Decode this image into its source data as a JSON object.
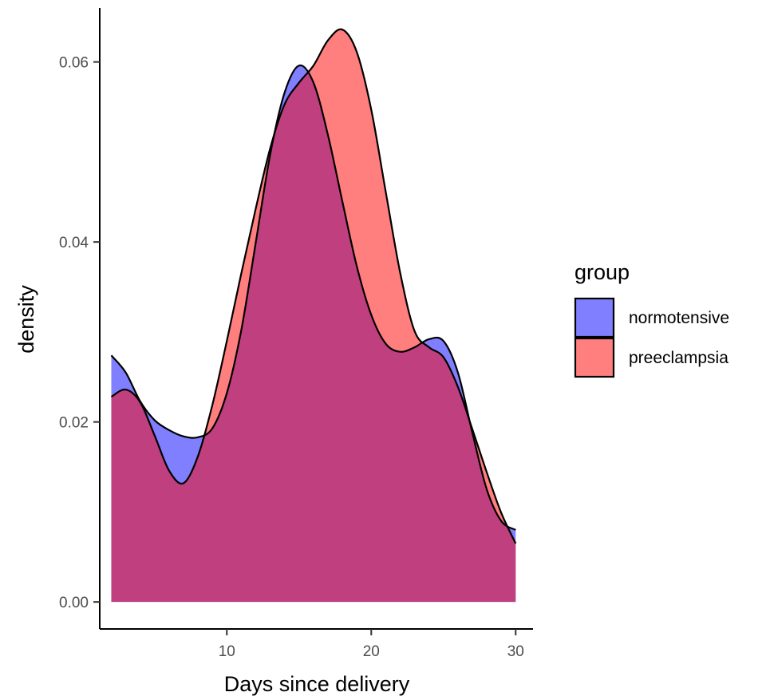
{
  "chart_data": {
    "type": "area",
    "xlabel": "Days since delivery",
    "ylabel": "density",
    "xlim": [
      1.2,
      31.2
    ],
    "ylim": [
      -0.003,
      0.066
    ],
    "x_ticks": [
      10,
      20,
      30
    ],
    "x_tick_labels": [
      "10",
      "20",
      "30"
    ],
    "y_ticks": [
      0,
      0.02,
      0.04,
      0.06
    ],
    "y_tick_labels": [
      "0.00",
      "0.02",
      "0.04",
      "0.06"
    ],
    "grid": false,
    "legend": {
      "title": "group",
      "position": "right"
    },
    "series": [
      {
        "name": "normotensive",
        "color": "#0000FF",
        "fill_opacity": 0.5,
        "points": [
          [
            2,
            0.0274
          ],
          [
            3,
            0.0255
          ],
          [
            4,
            0.0223
          ],
          [
            5,
            0.0202
          ],
          [
            6,
            0.0191
          ],
          [
            7,
            0.0184
          ],
          [
            8,
            0.0183
          ],
          [
            9,
            0.0193
          ],
          [
            10,
            0.0232
          ],
          [
            11,
            0.0302
          ],
          [
            12,
            0.0399
          ],
          [
            13,
            0.0497
          ],
          [
            14,
            0.0566
          ],
          [
            15,
            0.0596
          ],
          [
            16,
            0.0577
          ],
          [
            17,
            0.0519
          ],
          [
            18,
            0.0445
          ],
          [
            19,
            0.0373
          ],
          [
            20,
            0.0319
          ],
          [
            21,
            0.0287
          ],
          [
            22,
            0.0278
          ],
          [
            23,
            0.0283
          ],
          [
            24,
            0.0292
          ],
          [
            25,
            0.029
          ],
          [
            26,
            0.0255
          ],
          [
            27,
            0.0188
          ],
          [
            28,
            0.0125
          ],
          [
            29,
            0.009
          ],
          [
            30,
            0.008
          ]
        ]
      },
      {
        "name": "preeclampsia",
        "color": "#FF0000",
        "fill_opacity": 0.5,
        "points": [
          [
            2,
            0.0228
          ],
          [
            3,
            0.0236
          ],
          [
            4,
            0.0222
          ],
          [
            5,
            0.0185
          ],
          [
            6,
            0.0146
          ],
          [
            7,
            0.0132
          ],
          [
            8,
            0.0162
          ],
          [
            9,
            0.0219
          ],
          [
            10,
            0.029
          ],
          [
            11,
            0.0365
          ],
          [
            12,
            0.0437
          ],
          [
            13,
            0.0504
          ],
          [
            14,
            0.0553
          ],
          [
            15,
            0.0577
          ],
          [
            16,
            0.0596
          ],
          [
            17,
            0.0624
          ],
          [
            18,
            0.0636
          ],
          [
            19,
            0.0611
          ],
          [
            20,
            0.0547
          ],
          [
            21,
            0.0456
          ],
          [
            22,
            0.0366
          ],
          [
            23,
            0.0301
          ],
          [
            24,
            0.0283
          ],
          [
            25,
            0.0272
          ],
          [
            26,
            0.0239
          ],
          [
            27,
            0.0192
          ],
          [
            28,
            0.0144
          ],
          [
            29,
            0.0099
          ],
          [
            30,
            0.0065
          ]
        ]
      }
    ]
  }
}
